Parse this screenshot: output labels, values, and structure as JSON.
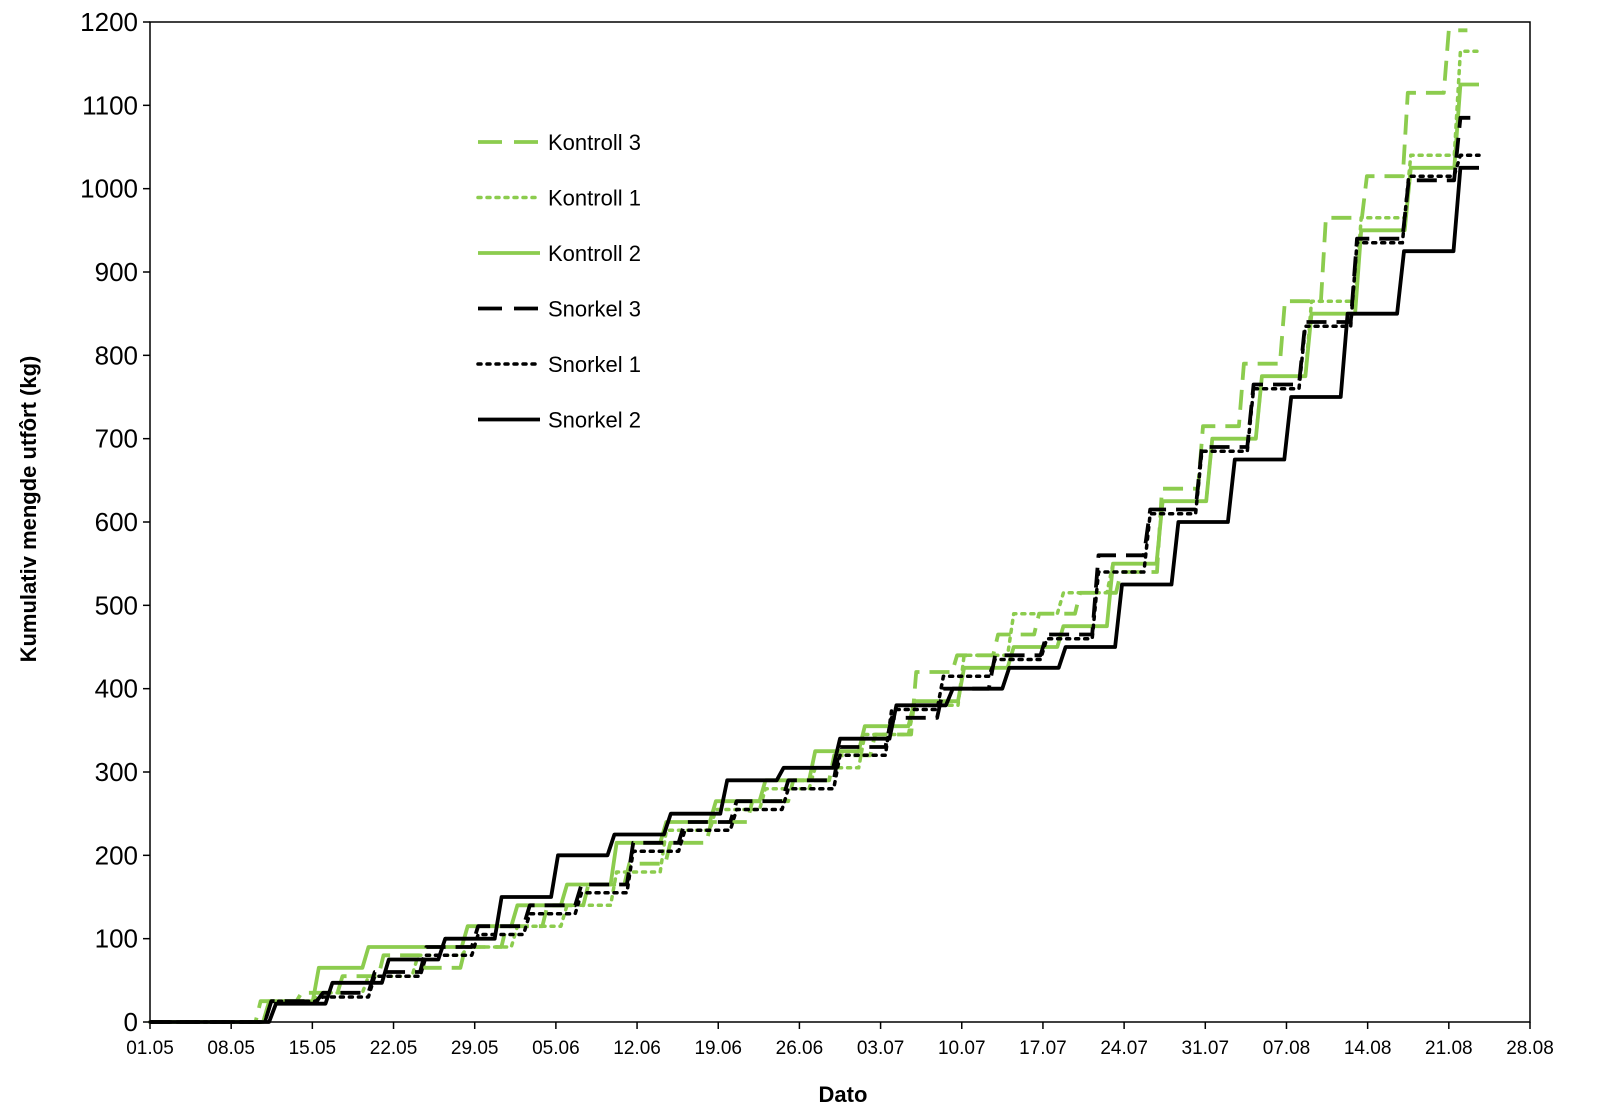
{
  "chart_data": {
    "type": "line",
    "title": "",
    "xlabel": "Dato",
    "ylabel": "Kumulativ mengde utfôrt (kg)",
    "x_unit": "date",
    "year_assumed": 2000,
    "xlim": [
      "2000-05-01",
      "2000-08-28"
    ],
    "ylim": [
      0,
      1200
    ],
    "x_ticks": [
      "01.05",
      "08.05",
      "15.05",
      "22.05",
      "29.05",
      "05.06",
      "12.06",
      "19.06",
      "26.06",
      "03.07",
      "10.07",
      "17.07",
      "24.07",
      "31.07",
      "07.08",
      "14.08",
      "21.08",
      "28.08"
    ],
    "y_ticks": [
      0,
      100,
      200,
      300,
      400,
      500,
      600,
      700,
      800,
      900,
      1000,
      1100,
      1200
    ],
    "grid": false,
    "legend_position": "upper-left-inside",
    "series": [
      {
        "name": "Kontroll 3",
        "color": "#8ccc4e",
        "style": "dashed",
        "step_start": "2000-05-07",
        "step_days": 2.5,
        "end": "2000-08-21",
        "values": [
          0,
          25,
          35,
          55,
          80,
          65,
          90,
          115,
          140,
          165,
          190,
          215,
          240,
          265,
          290,
          320,
          345,
          420,
          440,
          465,
          490,
          515,
          540,
          640,
          715,
          790,
          865,
          965,
          1015,
          1115,
          1190
        ]
      },
      {
        "name": "Kontroll 1",
        "color": "#8ccc4e",
        "style": "dotted",
        "step_start": "2000-05-07",
        "step_days": 2.5,
        "end": "2000-08-22",
        "values": [
          0,
          25,
          35,
          55,
          80,
          90,
          115,
          140,
          180,
          230,
          255,
          280,
          305,
          345,
          380,
          440,
          490,
          515,
          550,
          625,
          700,
          775,
          865,
          965,
          1040,
          1165
        ]
      },
      {
        "name": "Kontroll 2",
        "color": "#8ccc4e",
        "style": "solid",
        "step_start": "2000-05-07",
        "step_days": 2.5,
        "end": "2000-08-22",
        "values": [
          0,
          25,
          65,
          90,
          90,
          115,
          140,
          165,
          215,
          240,
          265,
          290,
          325,
          355,
          385,
          425,
          450,
          475,
          550,
          625,
          700,
          775,
          850,
          950,
          1025,
          1125
        ]
      },
      {
        "name": "Snorkel 3",
        "color": "#000000",
        "style": "dashed",
        "step_start": "2000-05-07",
        "step_days": 2.5,
        "end": "2000-08-22",
        "values": [
          0,
          25,
          35,
          60,
          90,
          115,
          140,
          165,
          215,
          240,
          265,
          290,
          330,
          365,
          400,
          440,
          465,
          560,
          615,
          690,
          765,
          840,
          940,
          1010,
          1085
        ]
      },
      {
        "name": "Snorkel 1",
        "color": "#000000",
        "style": "dotted",
        "step_start": "2000-05-07",
        "step_days": 2.5,
        "end": "2000-08-22",
        "values": [
          0,
          25,
          30,
          55,
          80,
          105,
          130,
          155,
          205,
          230,
          255,
          280,
          320,
          375,
          415,
          435,
          460,
          540,
          610,
          685,
          760,
          835,
          935,
          1015,
          1040
        ]
      },
      {
        "name": "Snorkel 2",
        "color": "#000000",
        "style": "solid",
        "step_start": "2000-05-07",
        "step_days": 2.5,
        "end": "2000-08-22",
        "values": [
          0,
          22,
          47,
          75,
          100,
          150,
          200,
          225,
          250,
          290,
          305,
          340,
          380,
          400,
          425,
          450,
          525,
          600,
          675,
          750,
          850,
          925,
          1025
        ]
      }
    ]
  }
}
